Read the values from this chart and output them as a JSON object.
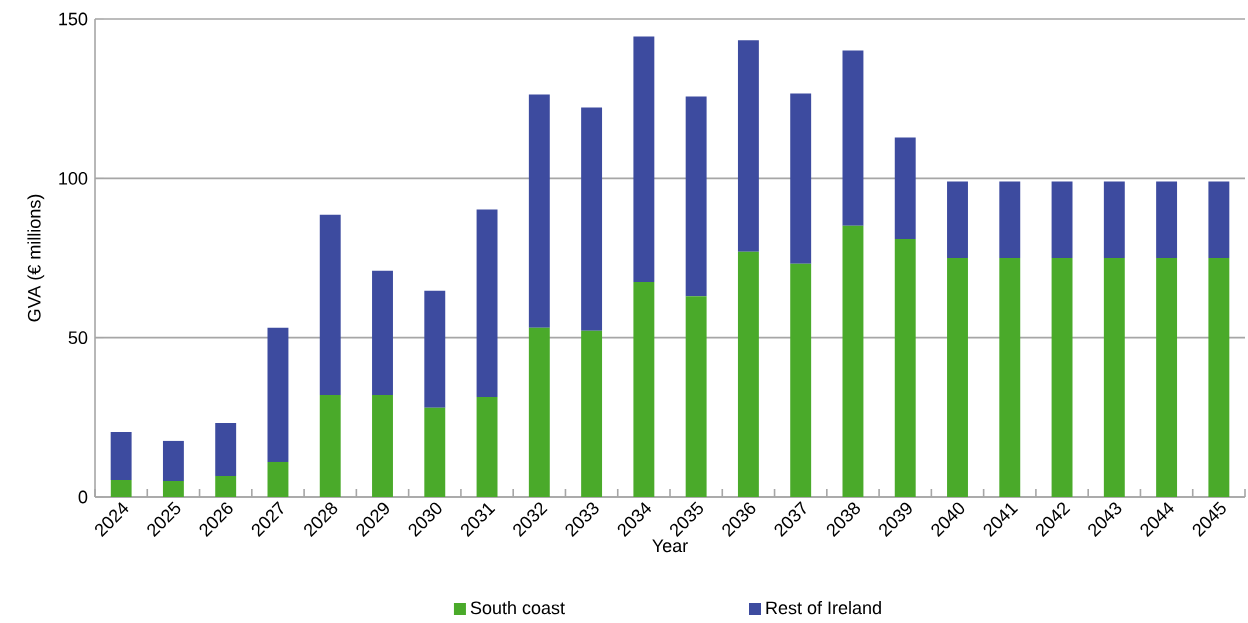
{
  "chart_data": {
    "type": "bar",
    "stacked": true,
    "xlabel": "Year",
    "ylabel": "GVA (€ millions)",
    "categories": [
      "2024",
      "2025",
      "2026",
      "2027",
      "2028",
      "2029",
      "2030",
      "2031",
      "2032",
      "2033",
      "2034",
      "2035",
      "2036",
      "2037",
      "2038",
      "2039",
      "2040",
      "2041",
      "2042",
      "2043",
      "2044",
      "2045"
    ],
    "series": [
      {
        "name": "South coast",
        "color": "#4aaa2a",
        "values": [
          5.3,
          5.0,
          6.6,
          11.0,
          32.0,
          32.0,
          28.0,
          31.4,
          53.1,
          52.2,
          67.5,
          63.0,
          77.0,
          73.2,
          85.1,
          81.0,
          75.0,
          75.0,
          75.0,
          75.0,
          75.0,
          75.0
        ]
      },
      {
        "name": "Rest of Ireland",
        "color": "#3d4b9f",
        "values": [
          15.1,
          12.6,
          16.6,
          42.1,
          56.6,
          39.0,
          36.7,
          58.8,
          73.2,
          70.0,
          77.0,
          62.7,
          66.3,
          53.4,
          55.0,
          31.8,
          24.0,
          24.0,
          24.0,
          24.0,
          24.0,
          24.0
        ]
      }
    ],
    "ylim": [
      0,
      150
    ],
    "yticks": [
      0,
      50,
      100,
      150
    ],
    "grid": "y",
    "legend": "bottom"
  }
}
